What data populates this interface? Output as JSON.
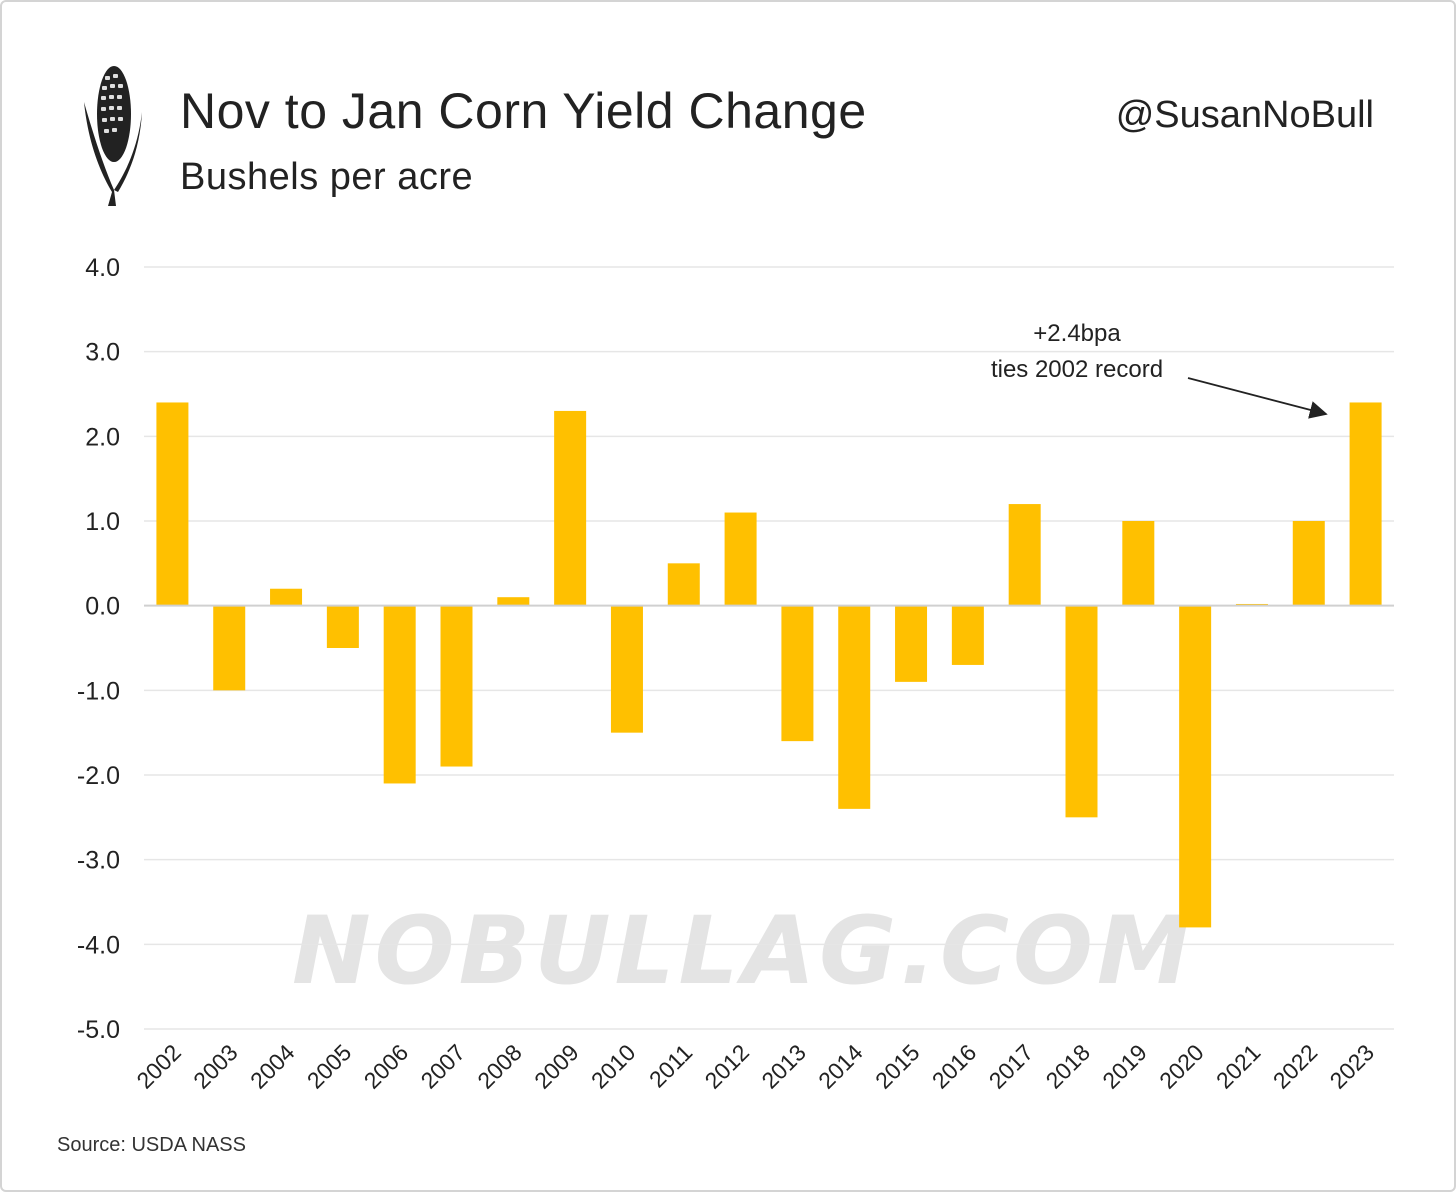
{
  "header": {
    "title": "Nov to Jan Corn Yield Change",
    "subtitle": "Bushels per acre",
    "handle": "@SusanNoBull"
  },
  "logo": {
    "icon": "corn-cob-icon"
  },
  "watermark": "NOBULLAG.COM",
  "source": "Source: USDA NASS",
  "annotation": {
    "line1": "+2.4bpa",
    "line2": "ties 2002 record"
  },
  "colors": {
    "bar": "#FFC000",
    "grid": "#e6e6e6",
    "text": "#222222"
  },
  "chart_data": {
    "type": "bar",
    "title": "Nov to Jan Corn Yield Change",
    "subtitle": "Bushels per acre",
    "categories": [
      "2002",
      "2003",
      "2004",
      "2005",
      "2006",
      "2007",
      "2008",
      "2009",
      "2010",
      "2011",
      "2012",
      "2013",
      "2014",
      "2015",
      "2016",
      "2017",
      "2018",
      "2019",
      "2020",
      "2021",
      "2022",
      "2023"
    ],
    "values": [
      2.4,
      -1.0,
      0.2,
      -0.5,
      -2.1,
      -1.9,
      0.1,
      2.3,
      -1.5,
      0.5,
      1.1,
      -1.6,
      -2.4,
      -0.9,
      -0.7,
      1.2,
      -2.5,
      1.0,
      -3.8,
      0.02,
      1.0,
      2.4
    ],
    "ylim": [
      -5,
      4
    ],
    "yticks": [
      "4.0",
      "3.0",
      "2.0",
      "1.0",
      "0.0",
      "-1.0",
      "-2.0",
      "-3.0",
      "-4.0",
      "-5.0"
    ],
    "grid": true,
    "legend": "none"
  }
}
